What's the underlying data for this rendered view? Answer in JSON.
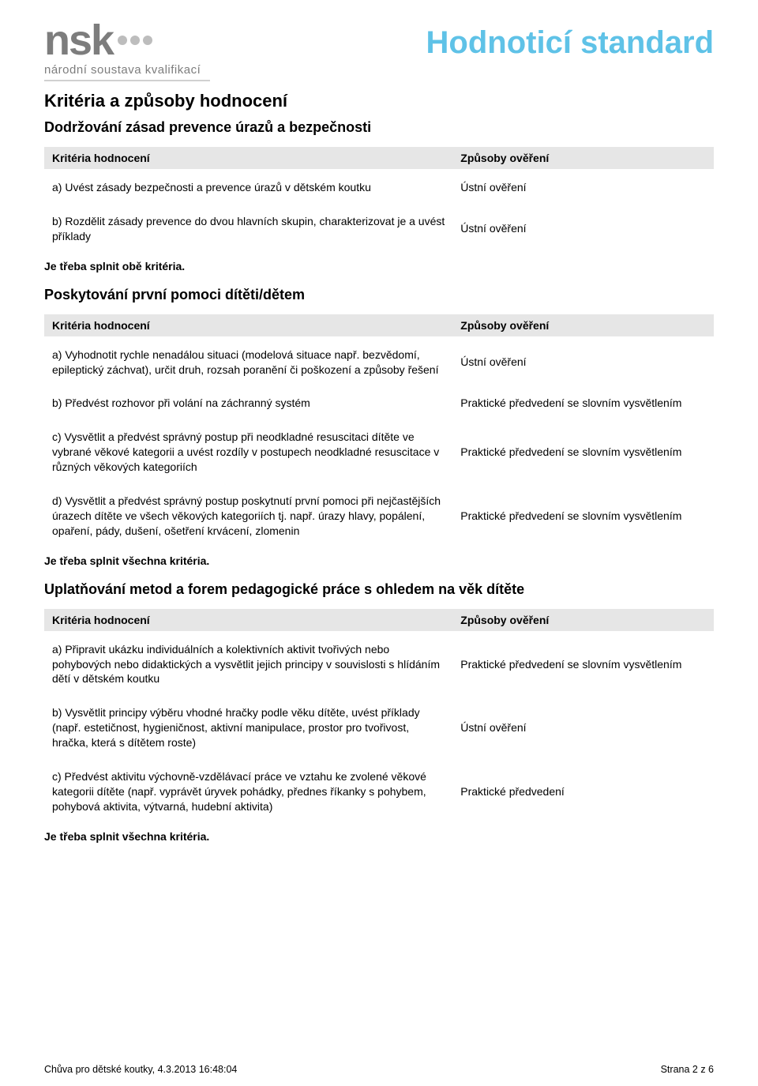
{
  "logo": {
    "text": "nsk",
    "subtitle": "národní soustava kvalifikací"
  },
  "doc_title": "Hodnoticí standard",
  "heading_main": "Kritéria a způsoby hodnocení",
  "table_headers": {
    "criteria": "Kritéria hodnocení",
    "methods": "Způsoby ověření"
  },
  "sections": [
    {
      "title": "Dodržování zásad prevence úrazů a bezpečnosti",
      "rows": [
        {
          "c": "a) Uvést zásady bezpečnosti a prevence úrazů v dětském koutku",
          "m": "Ústní ověření"
        },
        {
          "c": "b) Rozdělit zásady prevence do dvou hlavních skupin, charakterizovat je a uvést příklady",
          "m": "Ústní ověření"
        }
      ],
      "note": "Je třeba splnit obě kritéria."
    },
    {
      "title": "Poskytování první pomoci dítěti/dětem",
      "rows": [
        {
          "c": "a) Vyhodnotit rychle nenadálou situaci (modelová situace např. bezvědomí, epileptický záchvat), určit druh, rozsah poranění či poškození a způsoby řešení",
          "m": "Ústní ověření"
        },
        {
          "c": "b) Předvést rozhovor při volání na záchranný systém",
          "m": "Praktické předvedení se slovním vysvětlením"
        },
        {
          "c": "c) Vysvětlit a předvést správný postup při neodkladné resuscitaci dítěte ve vybrané věkové kategorii a uvést rozdíly v postupech neodkladné resuscitace v různých věkových kategoriích",
          "m": "Praktické předvedení se slovním vysvětlením"
        },
        {
          "c": "d) Vysvětlit a předvést správný postup poskytnutí první pomoci při nejčastějších úrazech dítěte ve všech věkových kategoriích tj. např. úrazy hlavy, popálení, opaření, pády, dušení, ošetření krvácení, zlomenin",
          "m": "Praktické předvedení se slovním vysvětlením"
        }
      ],
      "note": "Je třeba splnit všechna kritéria."
    },
    {
      "title": "Uplatňování metod a forem pedagogické práce s ohledem na věk dítěte",
      "rows": [
        {
          "c": "a) Připravit ukázku individuálních a kolektivních aktivit tvořivých nebo pohybových nebo didaktických a vysvětlit jejich principy v souvislosti s hlídáním dětí v dětském koutku",
          "m": "Praktické předvedení se slovním vysvětlením"
        },
        {
          "c": "b) Vysvětlit principy výběru vhodné hračky podle věku dítěte, uvést příklady (např. estetičnost, hygieničnost, aktivní manipulace, prostor pro tvořivost, hračka, která s dítětem roste)",
          "m": "Ústní ověření"
        },
        {
          "c": "c) Předvést aktivitu výchovně-vzdělávací práce ve vztahu ke zvolené věkové kategorii dítěte (např. vyprávět úryvek pohádky, přednes říkanky s pohybem, pohybová aktivita, výtvarná, hudební aktivita)",
          "m": "Praktické předvedení"
        }
      ],
      "note": "Je třeba splnit všechna kritéria."
    }
  ],
  "footer": {
    "left": "Chůva pro dětské koutky,  4.3.2013 16:48:04",
    "right": "Strana 2 z 6"
  },
  "colors": {
    "title_color": "#5fc2e7",
    "header_bg": "#e6e6e6",
    "logo_gray": "#7d7d7d",
    "dot_gray": "#bdbdbd"
  }
}
